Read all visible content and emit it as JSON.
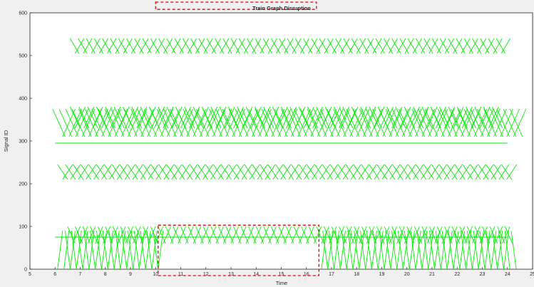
{
  "chart_data": {
    "type": "line",
    "title": "Train Graph Disruption",
    "xlabel": "Time",
    "ylabel": "Signal ID",
    "xlim": [
      5,
      25
    ],
    "ylim": [
      0,
      600
    ],
    "x_ticks": [
      "5",
      "6",
      "7",
      "8",
      "9",
      "10",
      "11",
      "12",
      "13",
      "14",
      "15",
      "16",
      "17",
      "18",
      "19",
      "20",
      "21",
      "22",
      "23",
      "24",
      "25"
    ],
    "y_ticks": [
      "0",
      "100",
      "200",
      "300",
      "400",
      "500",
      "600"
    ],
    "grid": false,
    "legend": "none",
    "line_color": "#00ee00",
    "series": [
      {
        "x": [
          5.9,
          6.4
        ],
        "y": [
          375,
          310
        ],
        "start_every": 0.26,
        "end_x": 24.2
      },
      {
        "x": [
          6.3,
          6.8
        ],
        "y": [
          310,
          375
        ],
        "start_every": 0.26,
        "end_x": 24.4
      },
      {
        "x": [
          6.6,
          7.0
        ],
        "y": [
          380,
          330
        ],
        "start_every": 0.35,
        "end_x": 23.5
      },
      {
        "x": [
          6.8,
          7.2
        ],
        "y": [
          330,
          380
        ],
        "start_every": 0.35,
        "end_x": 23.5
      },
      {
        "x": [
          6.1,
          6.5
        ],
        "y": [
          245,
          210
        ],
        "start_every": 0.31,
        "end_x": 24.0
      },
      {
        "x": [
          6.3,
          6.7
        ],
        "y": [
          210,
          245
        ],
        "start_every": 0.31,
        "end_x": 24.0
      },
      {
        "x": [
          6.6,
          6.95
        ],
        "y": [
          540,
          505
        ],
        "start_every": 0.32,
        "end_x": 23.8
      },
      {
        "x": [
          6.8,
          7.15
        ],
        "y": [
          505,
          540
        ],
        "start_every": 0.32,
        "end_x": 23.8
      },
      {
        "x": [
          6.1,
          6.3
        ],
        "y": [
          0,
          90
        ],
        "start_every": 0.25,
        "end_x": 24.0,
        "gap": [
          10.1,
          16.5
        ]
      },
      {
        "x": [
          6.4,
          6.6
        ],
        "y": [
          90,
          0
        ],
        "start_every": 0.25,
        "end_x": 24.2,
        "gap": [
          10.1,
          16.5
        ]
      },
      {
        "x": [
          6.5,
          6.8
        ],
        "y": [
          100,
          60
        ],
        "start_every": 0.3,
        "end_x": 24.0
      },
      {
        "x": [
          6.7,
          7.0
        ],
        "y": [
          60,
          100
        ],
        "start_every": 0.3,
        "end_x": 24.0
      },
      {
        "x": [
          6.0,
          24.0
        ],
        "y": [
          75,
          75
        ]
      },
      {
        "x": [
          6.0,
          24.0
        ],
        "y": [
          295,
          295
        ]
      }
    ],
    "annotations": [
      {
        "type": "dashed-rectangle",
        "color": "#ee0000",
        "x": [
          10.1,
          16.5
        ],
        "y": [
          -15,
          103
        ]
      },
      {
        "type": "dashed-rectangle",
        "color": "#ee0000",
        "x": [
          10.0,
          16.4
        ],
        "y": [
          608,
          625
        ]
      }
    ]
  }
}
